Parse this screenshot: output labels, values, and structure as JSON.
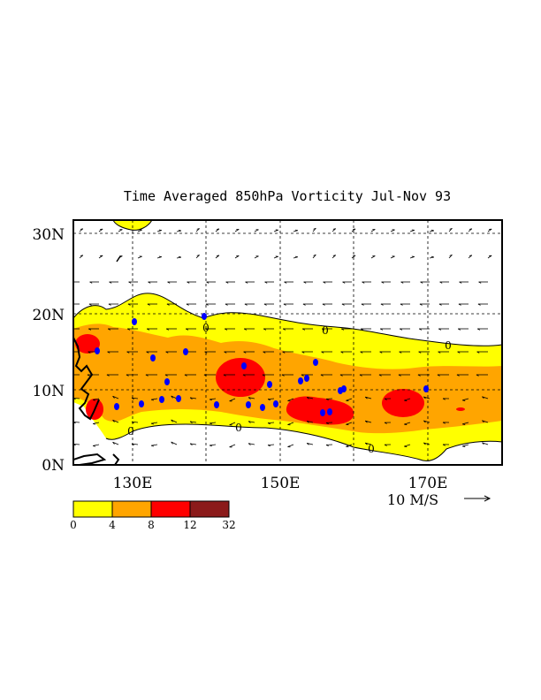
{
  "title": "Time Averaged 850hPa Vorticity  Jul-Nov  93",
  "lat_labels": [
    "30N",
    "20N",
    "10N",
    "0N"
  ],
  "lon_labels": [
    "130E",
    "150E",
    "170E"
  ],
  "reference_vector": {
    "label": "10 M/S"
  },
  "contour_label": "0",
  "colorbar": {
    "ticks": [
      "0",
      "4",
      "8",
      "12",
      "32"
    ],
    "colors": [
      "#ffff00",
      "#ffa500",
      "#ff0000",
      "#8b1a1a"
    ]
  },
  "colors": {
    "land_outline": "#000000",
    "typhoon_symbols": "#0000ff",
    "frame": "#000000"
  },
  "map_extent": {
    "lon_min": 122,
    "lon_max": 180,
    "lat_min": 0,
    "lat_max": 32
  }
}
